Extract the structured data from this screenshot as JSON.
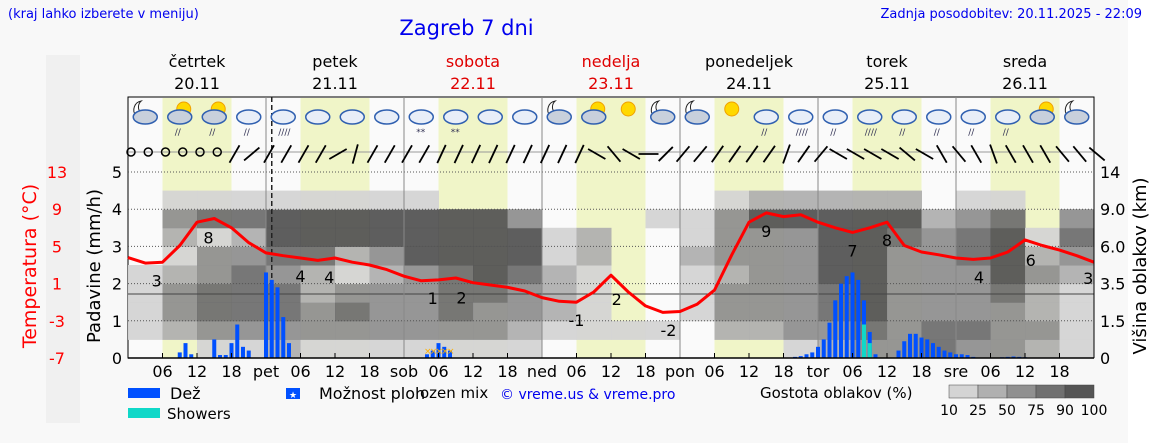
{
  "header": {
    "location_hint": "(kraj lahko izberete v meniju)",
    "title": "Zagreb 7 dni",
    "updated": "Zadnja posodobitev: 20.11.2025 - 22:09"
  },
  "days": [
    {
      "name": "četrtek",
      "date": "20.11",
      "weekend": false,
      "short": ""
    },
    {
      "name": "petek",
      "date": "21.11",
      "weekend": false,
      "short": "pet"
    },
    {
      "name": "sobota",
      "date": "22.11",
      "weekend": true,
      "short": "sob"
    },
    {
      "name": "nedelja",
      "date": "23.11",
      "weekend": true,
      "short": "ned"
    },
    {
      "name": "ponedeljek",
      "date": "24.11",
      "weekend": false,
      "short": "pon"
    },
    {
      "name": "torek",
      "date": "25.11",
      "weekend": false,
      "short": "tor"
    },
    {
      "name": "sreda",
      "date": "26.11",
      "weekend": false,
      "short": "sre"
    }
  ],
  "colors": {
    "rain": "#0050ff",
    "showers": "#10d8c8",
    "snow_mix": "#ffb000",
    "temperature": "#ff0000",
    "daylight": "#f0f5c8",
    "link": "#0000ee",
    "weekend": "#e00000"
  },
  "chart_data": {
    "type": "meteogram",
    "hours_total": 168,
    "hour_ticks": [
      "06",
      "12",
      "18"
    ],
    "now_hour": 22,
    "left_axis": {
      "label": "Padavine (mm/h)",
      "ticks": [
        0,
        1,
        2,
        3,
        4,
        5
      ],
      "ylim": [
        0,
        5
      ]
    },
    "temp_axis": {
      "label": "Temperatura (°C)",
      "ticks": [
        13,
        9,
        5,
        1,
        -3,
        -7
      ],
      "ylim": [
        -7,
        13
      ]
    },
    "right_axis": {
      "label": "Višina oblakov (km)",
      "ticks": [
        "0",
        "1.5",
        "3.5",
        "6.0",
        "9.0",
        "14"
      ]
    },
    "temperature_3h": [
      3.8,
      3.2,
      3.3,
      5.1,
      7.6,
      8.0,
      7.0,
      5.4,
      4.3,
      4.0,
      3.75,
      3.5,
      3.75,
      3.3,
      3.0,
      2.5,
      1.8,
      1.3,
      1.4,
      1.6,
      1.1,
      0.85,
      0.6,
      0.2,
      -0.5,
      -0.9,
      -1.0,
      0.1,
      1.9,
      0.1,
      -1.4,
      -2.1,
      -2.0,
      -1.2,
      0.3,
      4.1,
      7.6,
      8.6,
      8.2,
      8.4,
      7.6,
      7.0,
      6.5,
      7.0,
      7.6,
      5.1,
      4.4,
      4.1,
      3.75,
      3.6,
      3.75,
      4.4,
      5.7,
      5.1,
      4.6,
      4.0,
      3.3
    ],
    "temperature_labels": [
      {
        "hour": 5,
        "text": "3"
      },
      {
        "hour": 14,
        "text": "8"
      },
      {
        "hour": 30,
        "text": "4"
      },
      {
        "hour": 35,
        "text": "4"
      },
      {
        "hour": 53,
        "text": "1"
      },
      {
        "hour": 58,
        "text": "2"
      },
      {
        "hour": 78,
        "text": "-1"
      },
      {
        "hour": 85,
        "text": "2"
      },
      {
        "hour": 94,
        "text": "-2"
      },
      {
        "hour": 111,
        "text": "9"
      },
      {
        "hour": 126,
        "text": "7"
      },
      {
        "hour": 132,
        "text": "8"
      },
      {
        "hour": 148,
        "text": "4"
      },
      {
        "hour": 157,
        "text": "6"
      },
      {
        "hour": 167,
        "text": "3"
      }
    ],
    "precipitation": [
      {
        "hour": 9,
        "rain": 0.15
      },
      {
        "hour": 10,
        "rain": 0.4
      },
      {
        "hour": 11,
        "rain": 0.1
      },
      {
        "hour": 15,
        "rain": 0.5
      },
      {
        "hour": 16,
        "rain": 0.08
      },
      {
        "hour": 17,
        "rain": 0.08
      },
      {
        "hour": 18,
        "rain": 0.4
      },
      {
        "hour": 19,
        "rain": 0.9
      },
      {
        "hour": 20,
        "rain": 0.3
      },
      {
        "hour": 21,
        "rain": 0.2
      },
      {
        "hour": 24,
        "rain": 2.3
      },
      {
        "hour": 25,
        "rain": 2.1
      },
      {
        "hour": 26,
        "rain": 1.9
      },
      {
        "hour": 27,
        "rain": 1.1
      },
      {
        "hour": 28,
        "rain": 0.4
      },
      {
        "hour": 52,
        "rain": 0.1,
        "mix": true
      },
      {
        "hour": 53,
        "rain": 0.2,
        "mix": true
      },
      {
        "hour": 54,
        "rain": 0.4,
        "mix": true
      },
      {
        "hour": 55,
        "rain": 0.3,
        "mix": true
      },
      {
        "hour": 56,
        "rain": 0.2,
        "mix": true
      },
      {
        "hour": 116,
        "rain": 0.03
      },
      {
        "hour": 117,
        "rain": 0.05
      },
      {
        "hour": 118,
        "rain": 0.1
      },
      {
        "hour": 119,
        "rain": 0.15
      },
      {
        "hour": 120,
        "rain": 0.3
      },
      {
        "hour": 121,
        "rain": 0.5
      },
      {
        "hour": 122,
        "rain": 0.95
      },
      {
        "hour": 123,
        "rain": 1.55
      },
      {
        "hour": 124,
        "rain": 2.0
      },
      {
        "hour": 125,
        "rain": 2.2
      },
      {
        "hour": 126,
        "rain": 2.3
      },
      {
        "hour": 127,
        "rain": 2.1
      },
      {
        "hour": 128,
        "rain": 1.55,
        "showers": 0.9
      },
      {
        "hour": 129,
        "rain": 0.7,
        "showers": 0.4
      },
      {
        "hour": 130,
        "rain": 0.1
      },
      {
        "hour": 134,
        "rain": 0.2
      },
      {
        "hour": 135,
        "rain": 0.45
      },
      {
        "hour": 136,
        "rain": 0.65
      },
      {
        "hour": 137,
        "rain": 0.65
      },
      {
        "hour": 138,
        "rain": 0.55
      },
      {
        "hour": 139,
        "rain": 0.5
      },
      {
        "hour": 140,
        "rain": 0.4
      },
      {
        "hour": 141,
        "rain": 0.3
      },
      {
        "hour": 142,
        "rain": 0.2
      },
      {
        "hour": 143,
        "rain": 0.15
      },
      {
        "hour": 144,
        "rain": 0.1
      },
      {
        "hour": 145,
        "rain": 0.1
      },
      {
        "hour": 146,
        "rain": 0.08
      },
      {
        "hour": 147,
        "rain": 0.03
      },
      {
        "hour": 152,
        "rain": 0.02
      },
      {
        "hour": 153,
        "rain": 0.03
      },
      {
        "hour": 154,
        "rain": 0.04
      },
      {
        "hour": 155,
        "rain": 0.03
      },
      {
        "hour": 156,
        "rain": 0.02
      }
    ],
    "cloud_density_6h": [
      [
        0,
        10,
        20,
        15,
        10,
        0,
        0,
        0,
        0,
        0
      ],
      [
        0,
        30,
        50,
        50,
        40,
        20,
        40,
        60,
        10,
        0
      ],
      [
        10,
        50,
        75,
        80,
        70,
        50,
        20,
        80,
        20,
        0
      ],
      [
        20,
        60,
        85,
        85,
        75,
        60,
        40,
        85,
        10,
        0
      ],
      [
        30,
        70,
        85,
        75,
        60,
        80,
        90,
        95,
        20,
        0
      ],
      [
        20,
        60,
        60,
        40,
        30,
        80,
        95,
        95,
        10,
        0
      ],
      [
        10,
        60,
        75,
        60,
        20,
        30,
        90,
        95,
        10,
        0
      ],
      [
        10,
        60,
        70,
        50,
        40,
        60,
        95,
        95,
        10,
        0
      ],
      [
        10,
        60,
        70,
        60,
        60,
        90,
        95,
        90,
        10,
        0
      ],
      [
        20,
        60,
        75,
        80,
        85,
        90,
        95,
        95,
        0,
        0
      ],
      [
        20,
        50,
        70,
        85,
        90,
        90,
        95,
        90,
        0,
        0
      ],
      [
        10,
        40,
        60,
        70,
        80,
        90,
        90,
        60,
        0,
        0
      ],
      [
        0,
        20,
        40,
        40,
        30,
        20,
        10,
        0,
        0,
        0
      ],
      [
        0,
        10,
        20,
        10,
        10,
        30,
        30,
        0,
        0,
        0
      ],
      [
        0,
        10,
        0,
        0,
        0,
        0,
        0,
        0,
        0,
        0
      ],
      [
        0,
        10,
        0,
        0,
        0,
        0,
        0,
        20,
        0,
        0
      ],
      [
        0,
        0,
        10,
        20,
        20,
        40,
        20,
        10,
        0,
        0
      ],
      [
        0,
        30,
        50,
        60,
        40,
        50,
        60,
        70,
        20,
        0
      ],
      [
        0,
        40,
        60,
        50,
        50,
        50,
        70,
        95,
        40,
        0
      ],
      [
        10,
        50,
        60,
        60,
        60,
        60,
        60,
        95,
        40,
        0
      ],
      [
        30,
        60,
        80,
        80,
        90,
        90,
        95,
        95,
        40,
        0
      ],
      [
        60,
        80,
        95,
        95,
        95,
        95,
        95,
        95,
        40,
        0
      ],
      [
        60,
        70,
        70,
        60,
        60,
        60,
        80,
        90,
        30,
        0
      ],
      [
        80,
        85,
        70,
        50,
        60,
        60,
        50,
        40,
        0,
        0
      ],
      [
        70,
        80,
        60,
        50,
        70,
        80,
        80,
        60,
        20,
        0
      ],
      [
        60,
        70,
        50,
        80,
        90,
        95,
        95,
        80,
        20,
        0
      ],
      [
        40,
        60,
        40,
        40,
        50,
        30,
        20,
        0,
        0,
        0
      ],
      [
        10,
        20,
        20,
        20,
        40,
        60,
        80,
        60,
        0,
        0
      ]
    ],
    "weather_icons_6h": [
      "moon-cloud",
      "sun-cloud-rain",
      "sun-cloud-rain",
      "cloud-rain",
      "cloud-heavy-rain",
      "cloud",
      "cloud",
      "cloud",
      "cloud-snow",
      "cloud-snow",
      "cloud",
      "cloud",
      "moon-cloud",
      "sun-cloud",
      "sun",
      "moon-cloud",
      "moon-cloud",
      "sun",
      "cloud-rain",
      "cloud-heavy-rain",
      "cloud-rain",
      "cloud-heavy-rain",
      "cloud-rain",
      "cloud-rain",
      "cloud-rain",
      "cloud-rain",
      "sun-cloud",
      "moon-cloud"
    ],
    "wind_3h_dir_deg": [
      null,
      null,
      null,
      null,
      null,
      null,
      210,
      230,
      210,
      210,
      210,
      210,
      240,
      195,
      210,
      210,
      210,
      210,
      205,
      205,
      205,
      205,
      205,
      205,
      205,
      205,
      205,
      300,
      320,
      300,
      270,
      225,
      220,
      220,
      215,
      215,
      215,
      215,
      200,
      215,
      220,
      300,
      300,
      300,
      300,
      310,
      300,
      330,
      320,
      330,
      340,
      330,
      330,
      330,
      320,
      320,
      310
    ],
    "cloud_legend": {
      "label": "Gostota oblakov (%)",
      "ticks": [
        "10",
        "25",
        "50",
        "75",
        "90",
        "100"
      ]
    },
    "grid": true
  },
  "legend": {
    "rain": "Dež",
    "showers": "Showers",
    "possible_showers": "Možnost ploh",
    "mix": "ozen mix",
    "copyright": "© vreme.us & vreme.pro"
  }
}
